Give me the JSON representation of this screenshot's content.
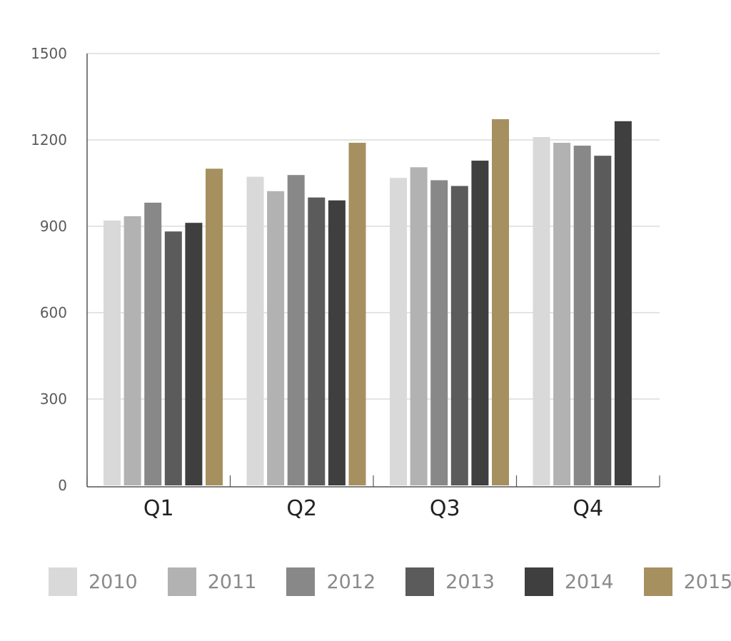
{
  "chart_data": {
    "type": "bar",
    "categories": [
      "Q1",
      "Q2",
      "Q3",
      "Q4"
    ],
    "series": [
      {
        "name": "2010",
        "color": "#d9d9d9",
        "values": [
          920,
          1072,
          1068,
          1210
        ]
      },
      {
        "name": "2011",
        "color": "#b2b2b2",
        "values": [
          935,
          1022,
          1105,
          1190
        ]
      },
      {
        "name": "2012",
        "color": "#888888",
        "values": [
          982,
          1078,
          1060,
          1180
        ]
      },
      {
        "name": "2013",
        "color": "#5b5b5b",
        "values": [
          882,
          1000,
          1040,
          1145
        ]
      },
      {
        "name": "2014",
        "color": "#3f3f3f",
        "values": [
          912,
          990,
          1128,
          1265
        ]
      },
      {
        "name": "2015",
        "color": "#a79060",
        "values": [
          1100,
          1190,
          1272,
          null
        ]
      }
    ],
    "ylim": [
      0,
      1500
    ],
    "yticks": [
      0,
      300,
      600,
      900,
      1200,
      1500
    ],
    "title": "",
    "xlabel": "",
    "ylabel": "",
    "grid": true,
    "legend_position": "bottom"
  }
}
